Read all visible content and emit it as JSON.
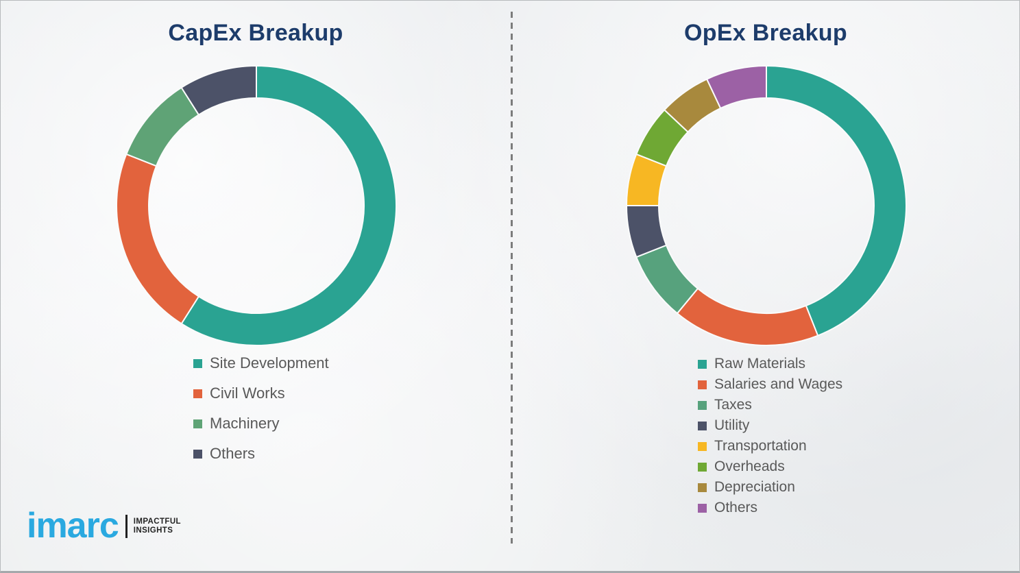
{
  "page": {
    "background_color": "#eff0f2",
    "border_color": "#b7babc",
    "divider_color": "#7c7c7c",
    "title_color": "#1d3c6b",
    "legend_text_color": "#595959"
  },
  "chart_data": [
    {
      "type": "pie",
      "variant": "donut",
      "title": "CapEx Breakup",
      "categories": [
        "Site Development",
        "Civil Works",
        "Machinery",
        "Others"
      ],
      "values": [
        59,
        22,
        10,
        9
      ],
      "values_note": "shares in percent, estimated from arc angles (no numeric data labels shown)",
      "colors": [
        "#2aa392",
        "#e2633d",
        "#5fa376",
        "#4c5268"
      ],
      "start_angle_deg": 0,
      "direction": "clockwise",
      "legend_position": "below-left",
      "separator_color": "#fafbfb"
    },
    {
      "type": "pie",
      "variant": "donut",
      "title": "OpEx Breakup",
      "categories": [
        "Raw Materials",
        "Salaries and Wages",
        "Taxes",
        "Utility",
        "Transportation",
        "Overheads",
        "Depreciation",
        "Others"
      ],
      "values": [
        44,
        17,
        8,
        6,
        6,
        6,
        6,
        7
      ],
      "values_note": "shares in percent, estimated from arc angles (no numeric data labels shown)",
      "colors": [
        "#2aa392",
        "#e2633d",
        "#57a27d",
        "#4c5268",
        "#f7b723",
        "#6fa834",
        "#a8893d",
        "#9c61a5"
      ],
      "start_angle_deg": 0,
      "direction": "clockwise",
      "legend_position": "below-left",
      "separator_color": "#fafbfb"
    }
  ],
  "logo": {
    "brand": "imarc",
    "tagline_line1": "IMPACTFUL",
    "tagline_line2": "INSIGHTS",
    "brand_color": "#2aa9e0",
    "bar_color": "#202020"
  }
}
